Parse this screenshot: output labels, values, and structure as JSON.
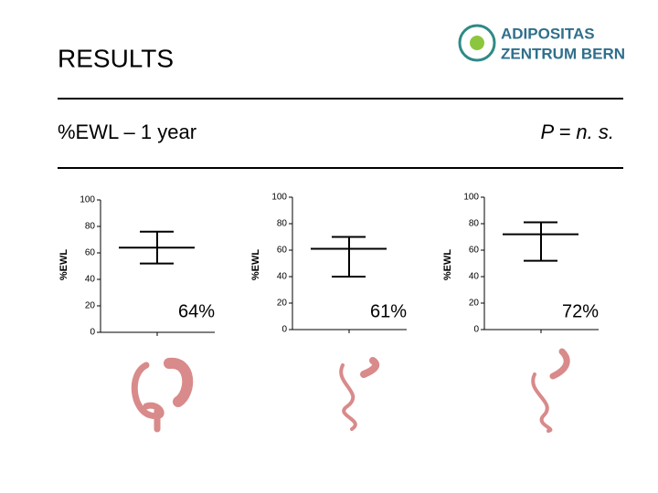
{
  "header": {
    "title": "RESULTS",
    "logo": [
      "ADIPOSITAS",
      "ZENTRUM BERN"
    ]
  },
  "subheader": {
    "left": "%EWL – 1 year",
    "right": "P = n. s."
  },
  "chart_data": [
    {
      "type": "errorbar",
      "ylabel": "%EWL",
      "ylim": [
        0,
        100
      ],
      "yticks": [
        0,
        20,
        40,
        60,
        80,
        100
      ],
      "values": [
        64
      ],
      "value_labels": [
        "64%"
      ],
      "low": [
        52
      ],
      "high": [
        76
      ],
      "color": "#000000"
    },
    {
      "type": "errorbar",
      "ylabel": "%EWL",
      "ylim": [
        0,
        100
      ],
      "yticks": [
        0,
        20,
        40,
        60,
        80,
        100
      ],
      "values": [
        61
      ],
      "value_labels": [
        "61%"
      ],
      "low": [
        40
      ],
      "high": [
        70
      ],
      "color": "#000000"
    },
    {
      "type": "errorbar",
      "ylabel": "%EWL",
      "ylim": [
        0,
        100
      ],
      "yticks": [
        0,
        20,
        40,
        60,
        80,
        100
      ],
      "values": [
        72
      ],
      "value_labels": [
        "72%"
      ],
      "low": [
        52
      ],
      "high": [
        81
      ],
      "color": "#000000"
    }
  ]
}
